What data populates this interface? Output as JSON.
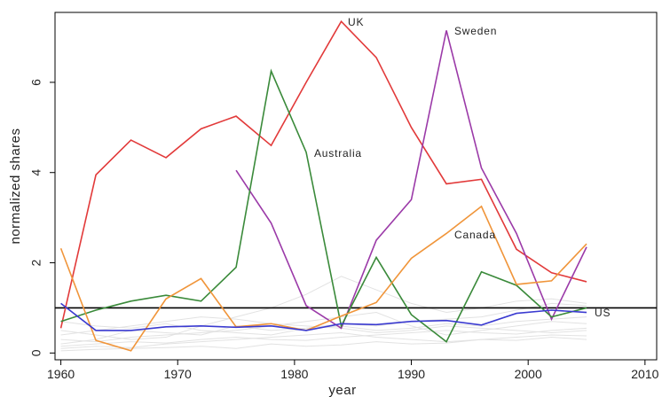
{
  "chart_data": {
    "type": "line",
    "xlabel": "year",
    "ylabel": "normalized shares",
    "xlim": [
      1959.5,
      2011
    ],
    "ylim": [
      -0.15,
      7.55
    ],
    "xticks": [
      1960,
      1970,
      1980,
      1990,
      2000,
      2010
    ],
    "yticks": [
      0,
      2,
      4,
      6
    ],
    "reference_line": {
      "y": 1,
      "color": "#000000"
    },
    "grid": false,
    "series": [
      {
        "name": "UK",
        "label": "UK",
        "color": "#e23a3a",
        "x": [
          1960,
          1963,
          1966,
          1969,
          1972,
          1975,
          1978,
          1981,
          1984,
          1987,
          1990,
          1993,
          1996,
          1999,
          2002,
          2005
        ],
        "y": [
          0.55,
          3.95,
          4.72,
          4.33,
          4.97,
          5.25,
          4.6,
          6.0,
          7.35,
          6.55,
          5.0,
          3.75,
          3.85,
          2.3,
          1.78,
          1.58
        ]
      },
      {
        "name": "Sweden",
        "label": "Sweden",
        "color": "#9b3aa8",
        "x": [
          1975,
          1978,
          1981,
          1984,
          1987,
          1990,
          1993,
          1996,
          1999,
          2002,
          2005
        ],
        "y": [
          4.05,
          2.88,
          1.05,
          0.55,
          2.5,
          3.4,
          7.15,
          4.1,
          2.65,
          0.75,
          2.35
        ]
      },
      {
        "name": "Australia",
        "label": "Australia",
        "color": "#3a8a3a",
        "x": [
          1960,
          1963,
          1966,
          1969,
          1972,
          1975,
          1978,
          1981,
          1984,
          1987,
          1990,
          1993,
          1996,
          1999,
          2002,
          2005
        ],
        "y": [
          0.7,
          0.95,
          1.15,
          1.28,
          1.15,
          1.9,
          6.25,
          4.45,
          0.6,
          2.12,
          0.85,
          0.25,
          1.8,
          1.5,
          0.8,
          1.0
        ]
      },
      {
        "name": "Canada",
        "label": "Canada",
        "color": "#f0953a",
        "x": [
          1960,
          1963,
          1966,
          1969,
          1972,
          1975,
          1978,
          1981,
          1984,
          1987,
          1990,
          1993,
          1996,
          1999,
          2002,
          2005
        ],
        "y": [
          2.32,
          0.28,
          0.05,
          1.2,
          1.65,
          0.58,
          0.65,
          0.5,
          0.82,
          1.12,
          2.1,
          2.65,
          3.25,
          1.52,
          1.6,
          2.42
        ]
      },
      {
        "name": "US",
        "label": "US",
        "color": "#3a3ad0",
        "x": [
          1960,
          1963,
          1966,
          1969,
          1972,
          1975,
          1978,
          1981,
          1984,
          1987,
          1990,
          1993,
          1996,
          1999,
          2002,
          2005
        ],
        "y": [
          1.1,
          0.5,
          0.5,
          0.58,
          0.6,
          0.57,
          0.6,
          0.5,
          0.65,
          0.63,
          0.7,
          0.72,
          0.62,
          0.88,
          0.95,
          0.9
        ]
      }
    ],
    "background_series": {
      "color": "#e2e2e2",
      "x": [
        1960,
        1963,
        1966,
        1969,
        1972,
        1975,
        1978,
        1981,
        1984,
        1987,
        1990,
        1993,
        1996,
        1999,
        2002,
        2005
      ],
      "lines": [
        [
          0.1,
          0.15,
          0.12,
          0.2,
          0.25,
          0.3,
          0.35,
          0.4,
          0.45,
          0.35,
          0.3,
          0.25,
          0.3,
          0.35,
          0.4,
          0.38
        ],
        [
          0.3,
          0.25,
          0.35,
          0.4,
          0.45,
          0.5,
          0.6,
          0.7,
          0.8,
          0.9,
          0.6,
          0.4,
          0.5,
          0.6,
          0.7,
          0.65
        ],
        [
          0.5,
          0.4,
          0.3,
          0.35,
          0.6,
          0.8,
          1.0,
          1.3,
          1.7,
          1.4,
          1.1,
          0.9,
          1.0,
          1.15,
          1.2,
          1.1
        ],
        [
          0.2,
          0.3,
          0.5,
          0.45,
          0.4,
          0.6,
          0.5,
          0.55,
          0.65,
          0.6,
          0.7,
          0.75,
          0.8,
          0.95,
          1.1,
          1.05
        ],
        [
          0.05,
          0.08,
          0.1,
          0.12,
          0.15,
          0.1,
          0.2,
          0.15,
          0.18,
          0.25,
          0.2,
          0.22,
          0.3,
          0.28,
          0.35,
          0.3
        ],
        [
          0.7,
          0.6,
          0.55,
          0.65,
          0.5,
          0.45,
          0.4,
          0.55,
          0.6,
          0.5,
          0.55,
          0.65,
          0.6,
          0.7,
          0.75,
          0.8
        ],
        [
          0.4,
          0.5,
          0.6,
          0.7,
          0.8,
          0.75,
          0.65,
          0.6,
          0.55,
          0.45,
          0.5,
          0.6,
          0.55,
          0.5,
          0.45,
          0.5
        ],
        [
          0.15,
          0.2,
          0.25,
          0.22,
          0.3,
          0.35,
          0.3,
          0.28,
          0.35,
          0.4,
          0.45,
          0.5,
          0.45,
          0.42,
          0.5,
          0.55
        ]
      ]
    }
  }
}
